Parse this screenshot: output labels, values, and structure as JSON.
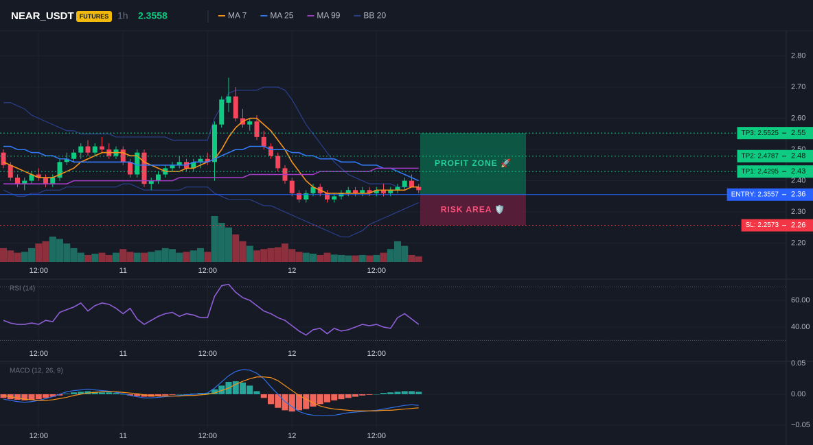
{
  "header": {
    "symbol": "NEAR_USDT",
    "badge": "FUTURES",
    "interval": "1h",
    "price": 2.3558
  },
  "chart_data": [
    {
      "type": "candlestick",
      "categories": [
        null,
        null,
        null,
        null,
        null,
        "12:00",
        null,
        null,
        null,
        null,
        null,
        null,
        null,
        null,
        null,
        null,
        null,
        "11",
        null,
        null,
        null,
        null,
        null,
        null,
        null,
        null,
        null,
        null,
        null,
        "12:00",
        null,
        null,
        null,
        null,
        null,
        null,
        null,
        null,
        null,
        null,
        null,
        "12",
        null,
        null,
        null,
        null,
        null,
        null,
        null,
        null,
        null,
        null,
        null,
        "12:00",
        null,
        null,
        null,
        null,
        null,
        null
      ],
      "open": [
        2.49,
        2.45,
        2.41,
        2.39,
        2.4,
        2.42,
        2.41,
        2.39,
        2.41,
        2.46,
        2.47,
        2.49,
        2.51,
        2.49,
        2.51,
        2.5,
        2.48,
        2.5,
        2.46,
        2.42,
        2.49,
        2.39,
        2.4,
        2.42,
        2.44,
        2.45,
        2.46,
        2.44,
        2.46,
        2.47,
        2.46,
        2.58,
        2.65,
        2.67,
        2.6,
        2.58,
        2.59,
        2.54,
        2.51,
        2.48,
        2.44,
        2.4,
        2.36,
        2.34,
        2.36,
        2.38,
        2.36,
        2.34,
        2.35,
        2.36,
        2.37,
        2.36,
        2.37,
        2.36,
        2.37,
        2.36,
        2.37,
        2.38,
        2.4,
        2.38
      ],
      "high": [
        2.5,
        2.46,
        2.42,
        2.41,
        2.43,
        2.44,
        2.42,
        2.42,
        2.47,
        2.49,
        2.5,
        2.52,
        2.53,
        2.52,
        2.54,
        2.52,
        2.51,
        2.51,
        2.47,
        2.5,
        2.5,
        2.41,
        2.43,
        2.45,
        2.46,
        2.48,
        2.47,
        2.47,
        2.48,
        2.49,
        2.59,
        2.67,
        2.73,
        2.7,
        2.63,
        2.6,
        2.61,
        2.56,
        2.52,
        2.49,
        2.45,
        2.41,
        2.37,
        2.37,
        2.39,
        2.39,
        2.37,
        2.36,
        2.37,
        2.38,
        2.38,
        2.38,
        2.38,
        2.38,
        2.39,
        2.38,
        2.39,
        2.41,
        2.42,
        2.39
      ],
      "low": [
        2.44,
        2.4,
        2.38,
        2.37,
        2.39,
        2.4,
        2.38,
        2.38,
        2.4,
        2.45,
        2.46,
        2.47,
        2.48,
        2.48,
        2.49,
        2.47,
        2.47,
        2.45,
        2.41,
        2.41,
        2.38,
        2.37,
        2.39,
        2.41,
        2.43,
        2.44,
        2.43,
        2.43,
        2.44,
        2.45,
        2.4,
        2.57,
        2.62,
        2.59,
        2.57,
        2.56,
        2.53,
        2.5,
        2.47,
        2.43,
        2.39,
        2.35,
        2.33,
        2.33,
        2.35,
        2.35,
        2.33,
        2.33,
        2.34,
        2.35,
        2.35,
        2.35,
        2.35,
        2.35,
        2.35,
        2.35,
        2.36,
        2.37,
        2.38,
        2.36
      ],
      "close": [
        2.45,
        2.41,
        2.39,
        2.4,
        2.42,
        2.41,
        2.39,
        2.41,
        2.46,
        2.47,
        2.49,
        2.51,
        2.49,
        2.51,
        2.5,
        2.48,
        2.5,
        2.46,
        2.42,
        2.49,
        2.39,
        2.4,
        2.42,
        2.44,
        2.45,
        2.46,
        2.44,
        2.46,
        2.47,
        2.46,
        2.58,
        2.66,
        2.67,
        2.6,
        2.58,
        2.59,
        2.54,
        2.51,
        2.48,
        2.44,
        2.4,
        2.36,
        2.34,
        2.36,
        2.38,
        2.36,
        2.34,
        2.35,
        2.36,
        2.37,
        2.36,
        2.37,
        2.36,
        2.37,
        2.36,
        2.37,
        2.38,
        2.4,
        2.38,
        2.37
      ],
      "volume": [
        30,
        25,
        20,
        22,
        30,
        40,
        45,
        55,
        50,
        40,
        30,
        20,
        15,
        18,
        20,
        15,
        20,
        28,
        22,
        20,
        20,
        22,
        25,
        30,
        28,
        20,
        22,
        25,
        30,
        22,
        100,
        85,
        75,
        60,
        45,
        35,
        25,
        28,
        30,
        32,
        40,
        28,
        22,
        20,
        18,
        15,
        20,
        16,
        15,
        14,
        14,
        15,
        14,
        15,
        20,
        28,
        45,
        35,
        15,
        12
      ],
      "colors": {
        "up": "#0ecb81",
        "down": "#f6465d",
        "volume_up": "#1e6d62",
        "volume_down": "#8e2f3d"
      },
      "series": [
        {
          "name": "MA 7",
          "color": "#f7931a",
          "values": [
            2.46,
            2.45,
            2.44,
            2.43,
            2.42,
            2.41,
            2.41,
            2.41,
            2.42,
            2.43,
            2.44,
            2.46,
            2.47,
            2.48,
            2.49,
            2.49,
            2.49,
            2.49,
            2.48,
            2.48,
            2.46,
            2.45,
            2.44,
            2.43,
            2.43,
            2.43,
            2.44,
            2.44,
            2.45,
            2.46,
            2.47,
            2.5,
            2.54,
            2.57,
            2.59,
            2.6,
            2.6,
            2.58,
            2.56,
            2.53,
            2.5,
            2.46,
            2.43,
            2.4,
            2.38,
            2.37,
            2.36,
            2.36,
            2.36,
            2.36,
            2.36,
            2.36,
            2.36,
            2.37,
            2.37,
            2.37,
            2.37,
            2.37,
            2.38,
            2.38
          ]
        },
        {
          "name": "MA 25",
          "color": "#3179f5",
          "values": [
            2.51,
            2.51,
            2.5,
            2.5,
            2.49,
            2.49,
            2.48,
            2.48,
            2.47,
            2.47,
            2.46,
            2.46,
            2.46,
            2.46,
            2.46,
            2.46,
            2.46,
            2.46,
            2.46,
            2.45,
            2.45,
            2.45,
            2.45,
            2.45,
            2.45,
            2.45,
            2.45,
            2.46,
            2.46,
            2.46,
            2.47,
            2.48,
            2.49,
            2.5,
            2.5,
            2.51,
            2.51,
            2.51,
            2.5,
            2.5,
            2.5,
            2.49,
            2.49,
            2.48,
            2.48,
            2.47,
            2.47,
            2.47,
            2.46,
            2.46,
            2.46,
            2.45,
            2.45,
            2.45,
            2.44,
            2.44,
            2.43,
            2.42,
            2.41,
            2.4
          ]
        },
        {
          "name": "MA 99",
          "color": "#a03bc4",
          "values": [
            2.39,
            2.39,
            2.39,
            2.39,
            2.39,
            2.39,
            2.39,
            2.39,
            2.39,
            2.39,
            2.4,
            2.4,
            2.4,
            2.4,
            2.4,
            2.4,
            2.4,
            2.4,
            2.4,
            2.4,
            2.4,
            2.4,
            2.4,
            2.4,
            2.4,
            2.41,
            2.41,
            2.41,
            2.41,
            2.41,
            2.41,
            2.41,
            2.41,
            2.41,
            2.41,
            2.42,
            2.42,
            2.42,
            2.42,
            2.42,
            2.42,
            2.42,
            2.42,
            2.42,
            2.42,
            2.43,
            2.43,
            2.43,
            2.43,
            2.43,
            2.43,
            2.43,
            2.43,
            2.44,
            2.44,
            2.44,
            2.44,
            2.44,
            2.44,
            2.44
          ]
        }
      ],
      "bands": {
        "name": "BB 20",
        "color": "#2b3f8c",
        "upper": [
          2.65,
          2.65,
          2.64,
          2.63,
          2.61,
          2.6,
          2.59,
          2.58,
          2.57,
          2.56,
          2.56,
          2.55,
          2.55,
          2.55,
          2.55,
          2.55,
          2.54,
          2.54,
          2.54,
          2.54,
          2.54,
          2.54,
          2.54,
          2.54,
          2.53,
          2.53,
          2.53,
          2.53,
          2.53,
          2.53,
          2.6,
          2.64,
          2.68,
          2.69,
          2.69,
          2.69,
          2.69,
          2.7,
          2.7,
          2.7,
          2.69,
          2.66,
          2.62,
          2.58,
          2.55,
          2.52,
          2.49,
          2.46,
          2.44,
          2.42,
          2.41,
          2.4,
          2.39,
          2.39,
          2.39,
          2.39,
          2.38,
          2.38,
          2.38,
          2.38
        ],
        "lower": [
          2.37,
          2.36,
          2.35,
          2.35,
          2.36,
          2.36,
          2.37,
          2.37,
          2.37,
          2.38,
          2.38,
          2.38,
          2.38,
          2.38,
          2.38,
          2.38,
          2.38,
          2.39,
          2.39,
          2.38,
          2.37,
          2.37,
          2.37,
          2.37,
          2.37,
          2.37,
          2.38,
          2.38,
          2.38,
          2.38,
          2.36,
          2.35,
          2.34,
          2.34,
          2.34,
          2.34,
          2.33,
          2.32,
          2.32,
          2.31,
          2.3,
          2.29,
          2.28,
          2.27,
          2.26,
          2.25,
          2.24,
          2.23,
          2.22,
          2.22,
          2.23,
          2.24,
          2.26,
          2.27,
          2.28,
          2.29,
          2.3,
          2.31,
          2.32,
          2.33
        ]
      },
      "levels": [
        {
          "label": "TP3: 2.5525",
          "value": 2.5525,
          "axis_label": "2.55",
          "color": "#0ecb81"
        },
        {
          "label": "TP2: 2.4787",
          "value": 2.4787,
          "axis_label": "2.48",
          "color": "#0ecb81"
        },
        {
          "label": "TP1: 2.4295",
          "value": 2.4295,
          "axis_label": "2.43",
          "color": "#0ecb81"
        },
        {
          "label": "ENTRY: 2.3557",
          "value": 2.3557,
          "axis_label": "2.36",
          "color": "#2962ff"
        },
        {
          "label": "SL: 2.2573",
          "value": 2.2573,
          "axis_label": "2.26",
          "color": "#f23645"
        }
      ],
      "zones": [
        {
          "label": "PROFIT ZONE 🚀",
          "from": 2.5525,
          "to": 2.3557,
          "color": "#0b6b4f",
          "text_color": "#22d39a"
        },
        {
          "label": "RISK AREA 🛡️",
          "from": 2.3557,
          "to": 2.2573,
          "color": "#6b1f3d",
          "text_color": "#ff4f7a"
        }
      ],
      "ylim": [
        2.14,
        2.88
      ],
      "yticks": [
        {
          "value": 2.2,
          "label": "2.20"
        },
        {
          "value": 2.3,
          "label": "2.30"
        },
        {
          "value": 2.4,
          "label": "2.40"
        },
        {
          "value": 2.5,
          "label": "2.50"
        },
        {
          "value": 2.6,
          "label": "2.60"
        },
        {
          "value": 2.7,
          "label": "2.70"
        },
        {
          "value": 2.8,
          "label": "2.80"
        }
      ],
      "grid": true
    },
    {
      "type": "line",
      "title": "RSI (14)",
      "color": "#8e5fd6",
      "values": [
        45,
        43,
        42,
        42,
        43,
        42,
        45,
        44,
        51,
        53,
        55,
        58,
        52,
        56,
        58,
        57,
        54,
        50,
        54,
        46,
        42,
        45,
        48,
        50,
        51,
        48,
        50,
        49,
        47,
        47,
        63,
        71,
        72,
        66,
        62,
        60,
        56,
        52,
        50,
        47,
        45,
        41,
        37,
        34,
        38,
        39,
        35,
        39,
        37,
        38,
        40,
        42,
        41,
        42,
        40,
        39,
        47,
        50,
        46,
        42
      ],
      "levels": [
        70,
        30
      ],
      "ylim": [
        25.6,
        75.4
      ],
      "yticks": [
        {
          "value": 60,
          "label": "60.00"
        },
        {
          "value": 40,
          "label": "40.00"
        }
      ],
      "grid": true
    },
    {
      "type": "bar",
      "title": "MACD (12, 26, 9)",
      "values": [
        -0.006,
        -0.008,
        -0.009,
        -0.01,
        -0.009,
        -0.008,
        -0.006,
        -0.004,
        -0.002,
        0.001,
        0.003,
        0.004,
        0.005,
        0.004,
        0.003,
        0.003,
        0.002,
        0.0,
        -0.002,
        -0.003,
        -0.004,
        -0.004,
        -0.003,
        -0.002,
        -0.001,
        0.0,
        0.0,
        0.001,
        0.002,
        0.002,
        0.008,
        0.014,
        0.02,
        0.021,
        0.019,
        0.014,
        0.005,
        -0.006,
        -0.016,
        -0.022,
        -0.026,
        -0.028,
        -0.026,
        -0.024,
        -0.02,
        -0.016,
        -0.013,
        -0.01,
        -0.008,
        -0.006,
        -0.004,
        -0.002,
        -0.001,
        0.0,
        0.002,
        0.003,
        0.004,
        0.005,
        0.005,
        0.004
      ],
      "colors": {
        "up": "#26a69a",
        "down": "#f0665a"
      },
      "series": [
        {
          "color": "#2f6fe8",
          "values": [
            -0.008,
            -0.01,
            -0.012,
            -0.013,
            -0.012,
            -0.01,
            -0.007,
            -0.004,
            0.0,
            0.004,
            0.006,
            0.007,
            0.008,
            0.007,
            0.006,
            0.005,
            0.003,
            0.001,
            -0.002,
            -0.004,
            -0.006,
            -0.006,
            -0.005,
            -0.004,
            -0.003,
            -0.002,
            -0.001,
            0.0,
            0.001,
            0.002,
            0.01,
            0.02,
            0.03,
            0.037,
            0.04,
            0.039,
            0.034,
            0.025,
            0.012,
            0.0,
            -0.012,
            -0.02,
            -0.028,
            -0.032,
            -0.034,
            -0.035,
            -0.035,
            -0.034,
            -0.032,
            -0.03,
            -0.029,
            -0.028,
            -0.027,
            -0.026,
            -0.024,
            -0.022,
            -0.02,
            -0.018,
            -0.017,
            -0.018
          ]
        },
        {
          "color": "#f7931a",
          "values": [
            -0.002,
            -0.004,
            -0.006,
            -0.008,
            -0.009,
            -0.01,
            -0.01,
            -0.009,
            -0.007,
            -0.005,
            -0.002,
            0.0,
            0.002,
            0.003,
            0.004,
            0.004,
            0.004,
            0.003,
            0.002,
            0.001,
            -0.001,
            -0.002,
            -0.003,
            -0.003,
            -0.003,
            -0.003,
            -0.002,
            -0.002,
            -0.001,
            0.0,
            0.002,
            0.006,
            0.01,
            0.016,
            0.021,
            0.025,
            0.028,
            0.028,
            0.027,
            0.022,
            0.014,
            0.006,
            -0.002,
            -0.008,
            -0.014,
            -0.019,
            -0.022,
            -0.024,
            -0.025,
            -0.026,
            -0.027,
            -0.027,
            -0.027,
            -0.027,
            -0.026,
            -0.026,
            -0.025,
            -0.024,
            -0.023,
            -0.022
          ]
        }
      ],
      "ylim": [
        -0.0556,
        0.0522
      ],
      "yticks": [
        {
          "value": 0.05,
          "label": "0.05"
        },
        {
          "value": 0,
          "label": "0.00"
        },
        {
          "value": -0.05,
          "label": "−0.05"
        }
      ],
      "grid": true
    }
  ]
}
